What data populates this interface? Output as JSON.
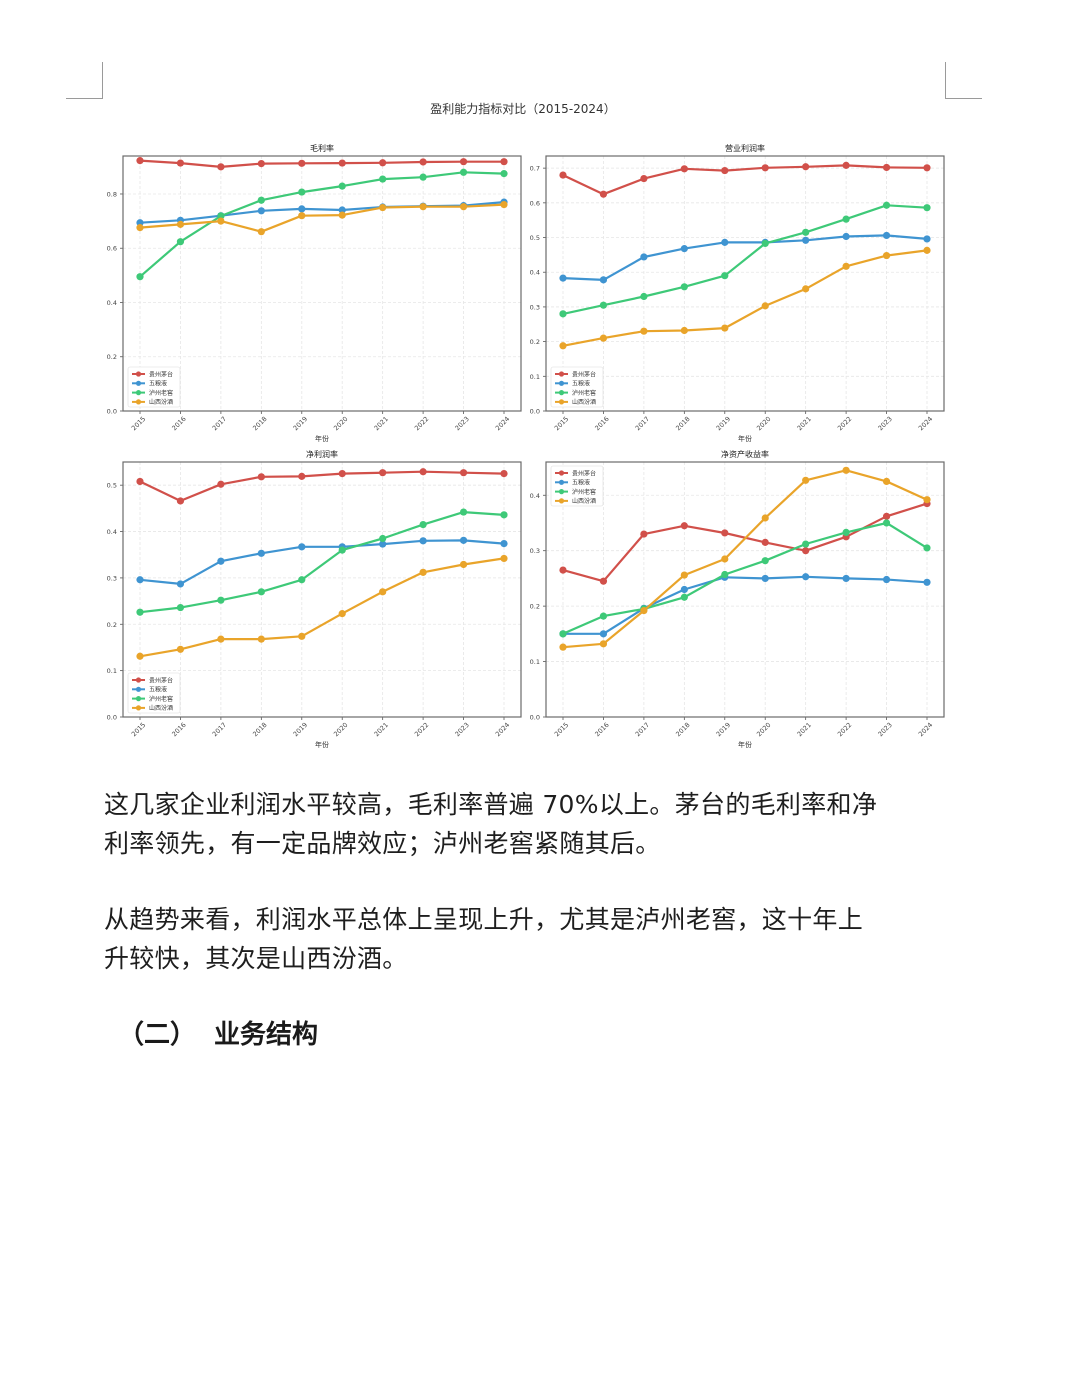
{
  "figure": {
    "suptitle": "盈利能力指标对比（2015-2024）",
    "xlabel": "年份",
    "legend": [
      "贵州茅台",
      "五粮液",
      "泸州老窖",
      "山西汾酒"
    ],
    "colors": [
      "#d1504a",
      "#3f94d1",
      "#3ec978",
      "#e9a42a"
    ]
  },
  "chart_data": [
    {
      "type": "line",
      "title": "毛利率",
      "xlabel": "年份",
      "categories": [
        "2015",
        "2016",
        "2017",
        "2018",
        "2019",
        "2020",
        "2021",
        "2022",
        "2023",
        "2024"
      ],
      "ylim": [
        0,
        0.94
      ],
      "yticks": [
        0.0,
        0.2,
        0.4,
        0.6,
        0.8
      ],
      "ytick_labels": [
        "0.0",
        "0.2",
        "0.4",
        "0.6",
        "0.8"
      ],
      "legend_position": "bottom-left",
      "grid": true,
      "series": [
        {
          "name": "贵州茅台",
          "values": [
            0.923,
            0.914,
            0.9,
            0.912,
            0.913,
            0.914,
            0.915,
            0.918,
            0.919,
            0.919
          ]
        },
        {
          "name": "五粮液",
          "values": [
            0.694,
            0.703,
            0.72,
            0.738,
            0.745,
            0.741,
            0.752,
            0.755,
            0.757,
            0.77
          ]
        },
        {
          "name": "泸州老窖",
          "values": [
            0.495,
            0.624,
            0.719,
            0.777,
            0.807,
            0.829,
            0.855,
            0.862,
            0.88,
            0.875
          ]
        },
        {
          "name": "山西汾酒",
          "values": [
            0.676,
            0.688,
            0.7,
            0.661,
            0.72,
            0.722,
            0.75,
            0.753,
            0.753,
            0.761
          ]
        }
      ]
    },
    {
      "type": "line",
      "title": "营业利润率",
      "xlabel": "年份",
      "categories": [
        "2015",
        "2016",
        "2017",
        "2018",
        "2019",
        "2020",
        "2021",
        "2022",
        "2023",
        "2024"
      ],
      "ylim": [
        0,
        0.735
      ],
      "yticks": [
        0.0,
        0.1,
        0.2,
        0.3,
        0.4,
        0.5,
        0.6,
        0.7
      ],
      "ytick_labels": [
        "0.0",
        "0.1",
        "0.2",
        "0.3",
        "0.4",
        "0.5",
        "0.6",
        "0.7"
      ],
      "legend_position": "bottom-left",
      "grid": true,
      "series": [
        {
          "name": "贵州茅台",
          "values": [
            0.68,
            0.625,
            0.67,
            0.698,
            0.693,
            0.701,
            0.704,
            0.708,
            0.702,
            0.701
          ]
        },
        {
          "name": "五粮液",
          "values": [
            0.383,
            0.378,
            0.444,
            0.468,
            0.486,
            0.486,
            0.492,
            0.503,
            0.506,
            0.496
          ]
        },
        {
          "name": "泸州老窖",
          "values": [
            0.28,
            0.305,
            0.33,
            0.358,
            0.39,
            0.483,
            0.515,
            0.553,
            0.593,
            0.586
          ]
        },
        {
          "name": "山西汾酒",
          "values": [
            0.188,
            0.21,
            0.23,
            0.232,
            0.239,
            0.303,
            0.352,
            0.417,
            0.448,
            0.463
          ]
        }
      ]
    },
    {
      "type": "line",
      "title": "净利润率",
      "xlabel": "年份",
      "categories": [
        "2015",
        "2016",
        "2017",
        "2018",
        "2019",
        "2020",
        "2021",
        "2022",
        "2023",
        "2024"
      ],
      "ylim": [
        0,
        0.55
      ],
      "yticks": [
        0.0,
        0.1,
        0.2,
        0.3,
        0.4,
        0.5
      ],
      "ytick_labels": [
        "0.0",
        "0.1",
        "0.2",
        "0.3",
        "0.4",
        "0.5"
      ],
      "legend_position": "bottom-left",
      "grid": true,
      "series": [
        {
          "name": "贵州茅台",
          "values": [
            0.508,
            0.466,
            0.502,
            0.518,
            0.519,
            0.525,
            0.527,
            0.529,
            0.527,
            0.525
          ]
        },
        {
          "name": "五粮液",
          "values": [
            0.296,
            0.287,
            0.336,
            0.353,
            0.367,
            0.367,
            0.373,
            0.38,
            0.381,
            0.374
          ]
        },
        {
          "name": "泸州老窖",
          "values": [
            0.226,
            0.236,
            0.252,
            0.27,
            0.296,
            0.36,
            0.385,
            0.415,
            0.442,
            0.436
          ]
        },
        {
          "name": "山西汾酒",
          "values": [
            0.131,
            0.146,
            0.168,
            0.168,
            0.174,
            0.223,
            0.27,
            0.312,
            0.329,
            0.342
          ]
        }
      ]
    },
    {
      "type": "line",
      "title": "净资产收益率",
      "xlabel": "年份",
      "categories": [
        "2015",
        "2016",
        "2017",
        "2018",
        "2019",
        "2020",
        "2021",
        "2022",
        "2023",
        "2024"
      ],
      "ylim": [
        0,
        0.46
      ],
      "yticks": [
        0.0,
        0.1,
        0.2,
        0.3,
        0.4
      ],
      "ytick_labels": [
        "0.0",
        "0.1",
        "0.2",
        "0.3",
        "0.4"
      ],
      "legend_position": "top-left",
      "grid": true,
      "series": [
        {
          "name": "贵州茅台",
          "values": [
            0.265,
            0.245,
            0.33,
            0.345,
            0.332,
            0.315,
            0.3,
            0.325,
            0.362,
            0.385
          ]
        },
        {
          "name": "五粮液",
          "values": [
            0.15,
            0.15,
            0.196,
            0.23,
            0.252,
            0.25,
            0.253,
            0.25,
            0.248,
            0.243
          ]
        },
        {
          "name": "泸州老窖",
          "values": [
            0.15,
            0.182,
            0.195,
            0.216,
            0.257,
            0.282,
            0.312,
            0.333,
            0.35,
            0.305
          ]
        },
        {
          "name": "山西汾酒",
          "values": [
            0.126,
            0.132,
            0.192,
            0.256,
            0.285,
            0.359,
            0.427,
            0.445,
            0.425,
            0.392
          ]
        }
      ]
    }
  ],
  "paragraphs": [
    {
      "line1": "这几家企业利润水平较高，毛利率普遍 70%以上。茅台的毛利率和净",
      "line2": "利率领先，有一定品牌效应；泸州老窖紧随其后。"
    },
    {
      "line1": "从趋势来看，利润水平总体上呈现上升，尤其是泸州老窖，这十年上",
      "line2": "升较快，其次是山西汾酒。"
    }
  ],
  "heading": {
    "number": "（二）",
    "text": "业务结构"
  }
}
